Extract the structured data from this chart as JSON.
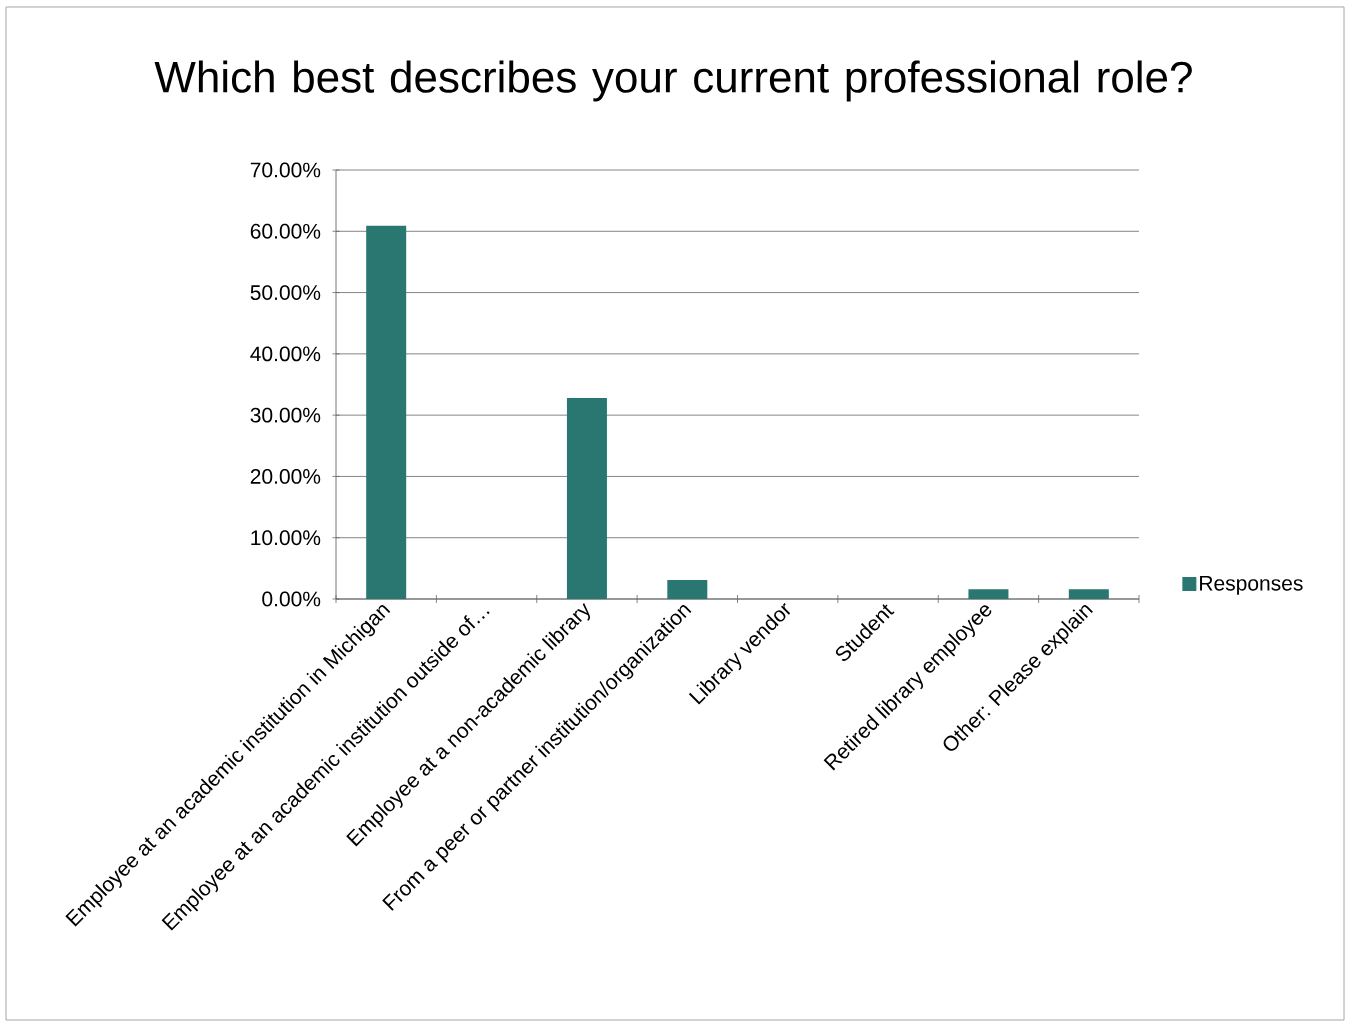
{
  "chart_data": {
    "type": "bar",
    "title": "Which best describes your current professional role?",
    "categories": [
      "Employee at an academic institution in Michigan",
      "Employee at an academic institution outside of…",
      "Employee at a non-academic library",
      "From a peer or partner institution/organization",
      "Library vendor",
      "Student",
      "Retired library employee",
      "Other: Please explain"
    ],
    "series": [
      {
        "name": "Responses",
        "color": "#2a7670",
        "values": [
          60.9,
          0,
          32.8,
          3.1,
          0,
          0,
          1.6,
          1.6
        ]
      }
    ],
    "ylim": [
      0,
      70
    ],
    "yticks": [
      {
        "value": 0,
        "label": "0.00%"
      },
      {
        "value": 10,
        "label": "10.00%"
      },
      {
        "value": 20,
        "label": "20.00%"
      },
      {
        "value": 30,
        "label": "30.00%"
      },
      {
        "value": 40,
        "label": "40.00%"
      },
      {
        "value": 50,
        "label": "50.00%"
      },
      {
        "value": 60,
        "label": "60.00%"
      },
      {
        "value": 70,
        "label": "70.00%"
      }
    ],
    "grid": "y",
    "legend": "right"
  }
}
